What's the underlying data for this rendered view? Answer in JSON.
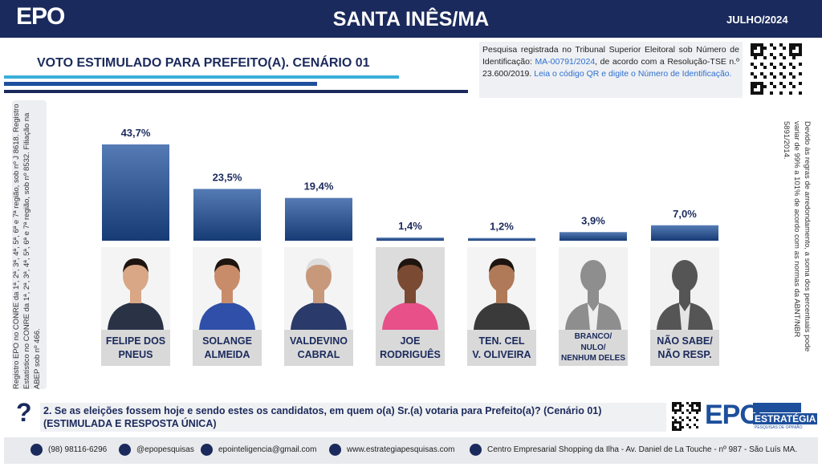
{
  "header": {
    "logo": "EPO",
    "title": "SANTA INÊS/MA",
    "date": "JULHO/2024"
  },
  "registration": {
    "parts": [
      "Pesquisa registrada no Tribunal Superior Eleitoral sob Número de Identificação: ",
      "MA-00791/2024",
      ", de acordo com a Resolução-TSE n.º 23.600/2019. ",
      "Leia o código QR e digite o Número de Identificação."
    ]
  },
  "left_note": "Registro EPO no CONRE da 1ª, 2ª, 3ª, 4ª, 5ª, 6ª e 7ª região, sob nº J 8618. Registro Estatístico no CONRE da 1ª, 2ª, 3ª, 4ª, 5ª, 6ª e 7ª região, sob nº 8532. Filiação na ABEP sob nº 466.",
  "right_note": "Devido às regras de arredondamento, a soma dos percentuais pode variar de 99% a 101% de acordo com as normas da ABNT/NBR 5891/2014.",
  "chart_data": {
    "type": "bar",
    "title": "VOTO ESTIMULADO PARA PREFEITO(A). CENÁRIO 01",
    "categories": [
      "FELIPE DOS\nPNEUS",
      "SOLANGE\nALMEIDA",
      "VALDEVINO\nCABRAL",
      "JOE\nRODRIGUÊS",
      "TEN. CEL\nV. OLIVEIRA",
      "BRANCO/\nNULO/\nNENHUM DELES",
      "NÃO SABE/\nNÃO RESP."
    ],
    "values": [
      43.7,
      23.5,
      19.4,
      1.4,
      1.2,
      3.9,
      7.0
    ],
    "value_labels": [
      "43,7%",
      "23,5%",
      "19,4%",
      "1,4%",
      "1,2%",
      "3,9%",
      "7,0%"
    ],
    "color": "#1d4f9c"
  },
  "question": {
    "mark": "?",
    "text": "2. Se as eleições fossem hoje e sendo estes os candidatos, em quem o(a) Sr.(a) votaria para Prefeito(a)? (Cenário 01)",
    "note": "(ESTIMULADA E RESPOSTA ÚNICA)"
  },
  "brand": {
    "name": "EPO",
    "sub": "ESTRATÉGIA",
    "tag": "PESQUISAS DE OPINIÃO"
  },
  "footer": [
    "(98) 98116-6296",
    "@epopesquisas",
    "epointeligencia@gmail.com",
    "www.estrategiapesquisas.com",
    "Centro Empresarial Shopping da Ilha - Av. Daniel de La Touche - nº 987 - São Luís MA."
  ]
}
